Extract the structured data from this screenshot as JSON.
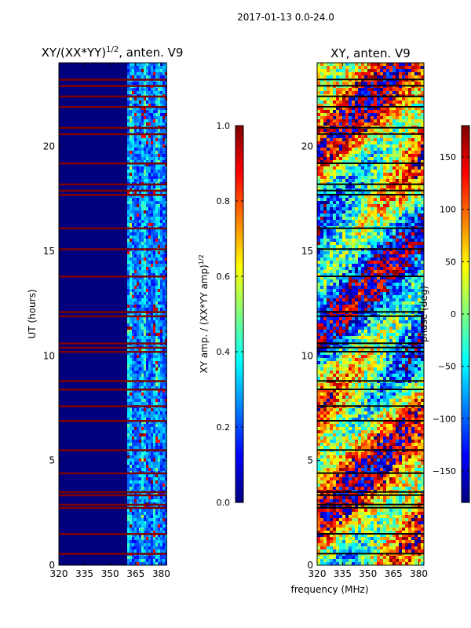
{
  "suptitle": "2017-01-13 0.0-24.0",
  "xlabel_shared": "frequency (MHz)",
  "chart_data": [
    {
      "type": "heatmap",
      "title": "XY/(XX*YY)^{1/2}, anten. V9",
      "title_main": "XY/(XX*YY)",
      "title_sup": "1/2",
      "title_tail": ", anten. V9",
      "xlabel": "",
      "ylabel": "UT (hours)",
      "xlim": [
        320,
        383
      ],
      "ylim": [
        0,
        24
      ],
      "xticks": [
        320,
        335,
        350,
        365,
        380
      ],
      "yticks": [
        0,
        5,
        10,
        15,
        20
      ],
      "colormap": "jet",
      "band_start_mhz": 360,
      "masked_hours": [
        0.55,
        1.5,
        2.75,
        2.9,
        3.35,
        3.5,
        4.4,
        5.5,
        6.9,
        7.6,
        8.4,
        8.8,
        10.2,
        10.4,
        10.6,
        11.9,
        12.1,
        13.8,
        15.1,
        16.1,
        17.7,
        17.9,
        18.2,
        19.2,
        20.6,
        20.9,
        21.9,
        22.4,
        22.9,
        23.2
      ],
      "colorbar": {
        "label": "XY amp. / (XX*YY amp)^{1/2}",
        "label_main": "XY amp. / (XX*YY amp)",
        "label_sup": "1/2",
        "range": [
          0.0,
          1.0
        ],
        "ticks": [
          "0.0",
          "0.2",
          "0.4",
          "0.6",
          "0.8",
          "1.0"
        ],
        "tick_values": [
          0.0,
          0.2,
          0.4,
          0.6,
          0.8,
          1.0
        ]
      }
    },
    {
      "type": "heatmap",
      "title": "XY, anten. V9",
      "xlabel": "frequency (MHz)",
      "ylabel": "",
      "xlim": [
        320,
        383
      ],
      "ylim": [
        0,
        24
      ],
      "xticks": [
        320,
        335,
        350,
        365,
        380
      ],
      "yticks": [
        0,
        5,
        10,
        15,
        20
      ],
      "colormap": "jet",
      "colorbar": {
        "label": "phase (deg)",
        "range": [
          -180,
          180
        ],
        "ticks": [
          "150",
          "100",
          "50",
          "0",
          "−50",
          "−100",
          "−150"
        ],
        "tick_values": [
          150,
          100,
          50,
          0,
          -50,
          -100,
          -150
        ]
      }
    }
  ],
  "colors": {
    "jet_stops": [
      "#00007f",
      "#0000ff",
      "#007fff",
      "#00ffff",
      "#7fff7f",
      "#ffff00",
      "#ff7f00",
      "#ff0000",
      "#7f0000"
    ],
    "mask": "#7f0000",
    "axis": "#000000",
    "background": "#ffffff"
  }
}
